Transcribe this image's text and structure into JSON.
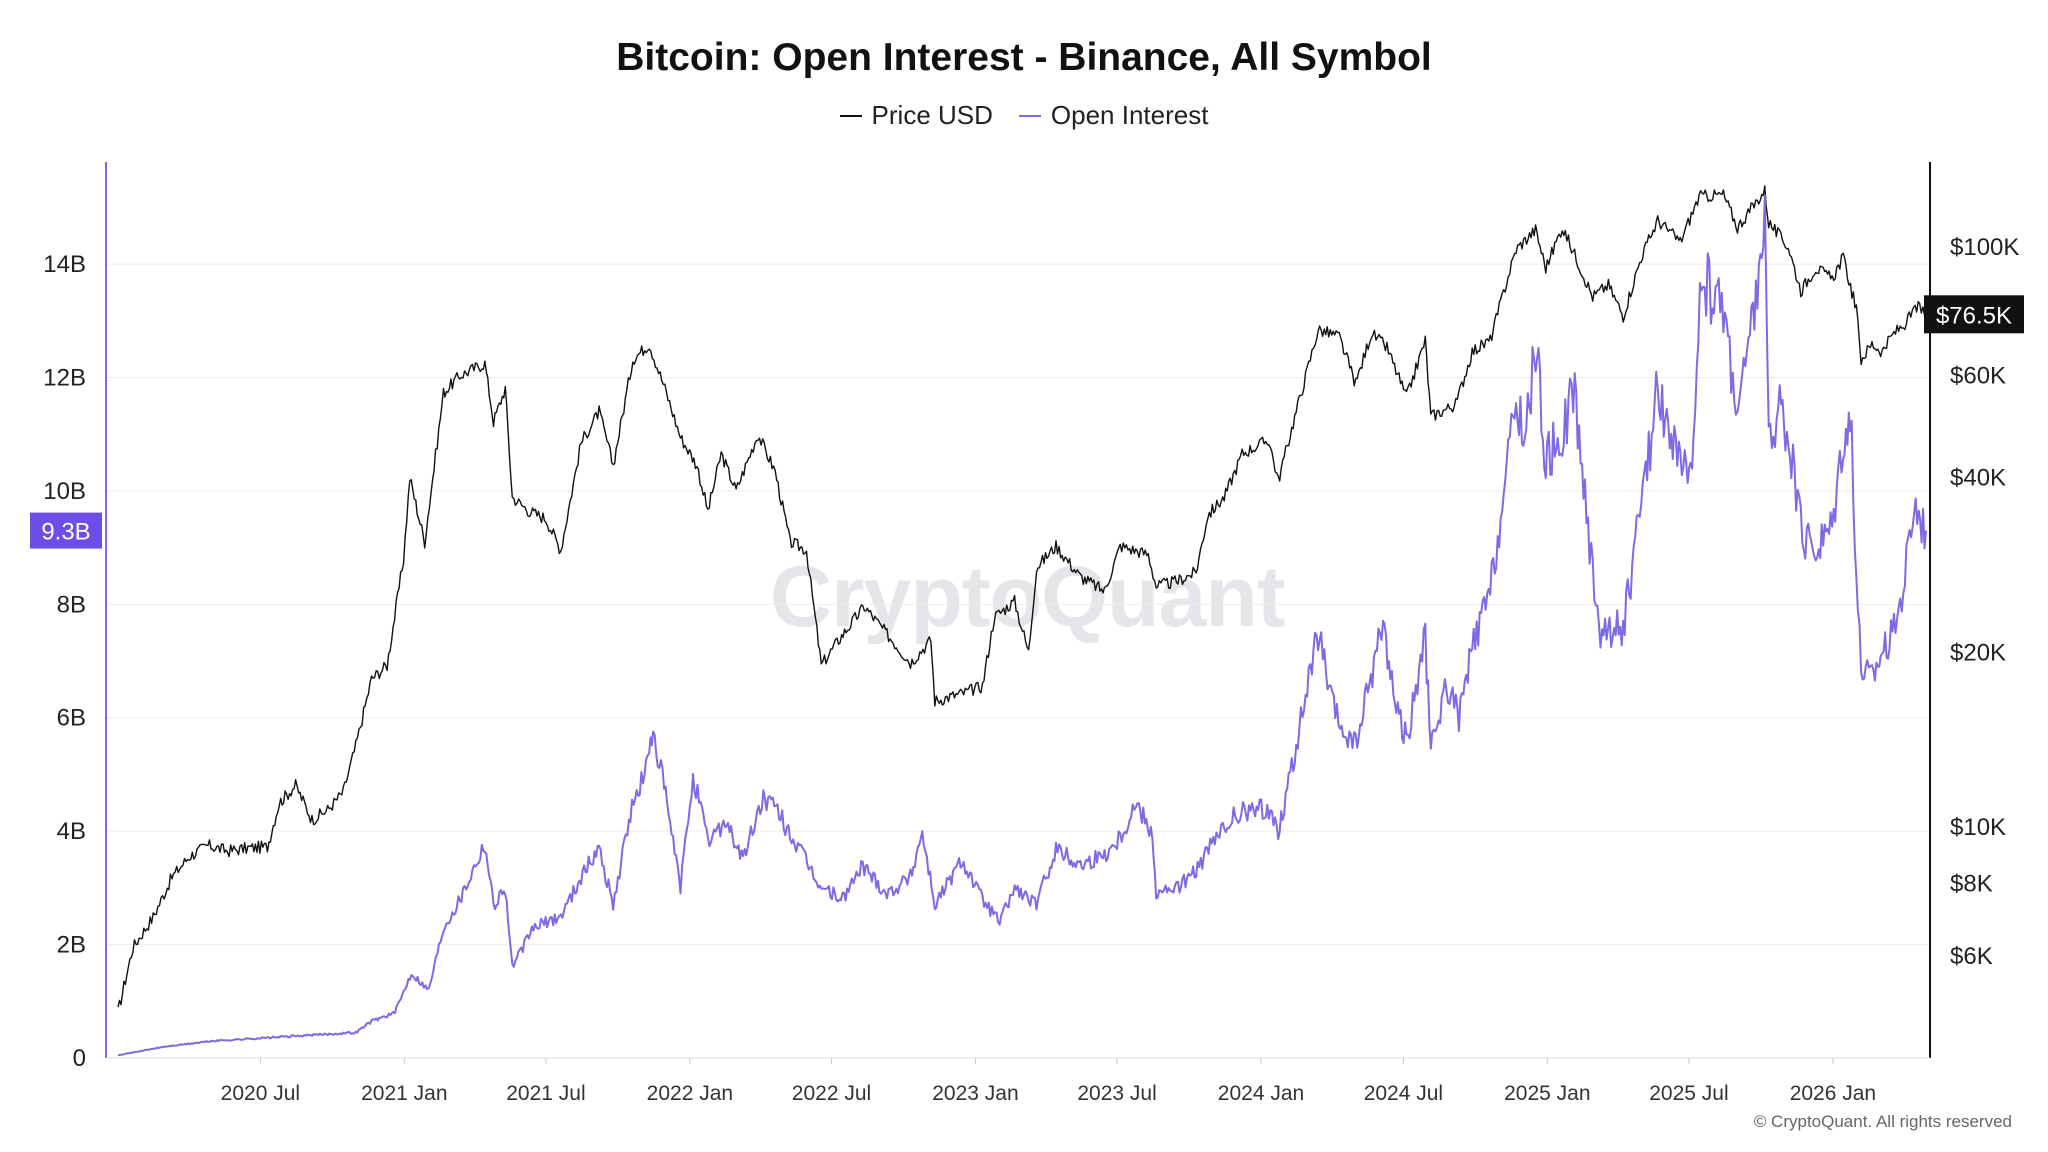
{
  "colors": {
    "price": "#111111",
    "open_interest": "#7b6be6",
    "oi_badge": "#6a4ee6",
    "price_badge": "#111111",
    "grid": "#eeeeee"
  },
  "chart_data": {
    "type": "line",
    "title": "Bitcoin: Open Interest - Binance, All Symbol",
    "legend": [
      "Price USD",
      "Open Interest"
    ],
    "legend_position": "top-center",
    "grid": true,
    "x_axis": {
      "type": "date",
      "range": [
        "2020-01-01",
        "2026-04-30"
      ],
      "tick_labels": [
        "2020 Jul",
        "2021 Jan",
        "2021 Jul",
        "2022 Jan",
        "2022 Jul",
        "2023 Jan",
        "2023 Jul",
        "2024 Jan",
        "2024 Jul",
        "2025 Jan",
        "2025 Jul",
        "2026 Jan"
      ]
    },
    "y_axis_left": {
      "label": "",
      "range": [
        0,
        15800000000
      ],
      "tick_labels": [
        "0",
        "2B",
        "4B",
        "6B",
        "8B",
        "10B",
        "12B",
        "14B"
      ],
      "tick_values": [
        0,
        2000000000,
        4000000000,
        6000000000,
        8000000000,
        10000000000,
        12000000000,
        14000000000
      ]
    },
    "y_axis_right": {
      "label": "",
      "scale": "log",
      "range": [
        4000,
        140000
      ],
      "tick_labels": [
        "$6K",
        "$8K",
        "$10K",
        "$20K",
        "$40K",
        "$60K",
        "$100K"
      ],
      "tick_values": [
        6000,
        8000,
        10000,
        20000,
        40000,
        60000,
        100000
      ]
    },
    "current_values": {
      "open_interest_label": "9.3B",
      "price_label": "$76.5K"
    },
    "series": [
      {
        "name": "Price USD",
        "axis": "right",
        "points": [
          [
            "2020-01-01",
            4800
          ],
          [
            "2020-01-20",
            6200
          ],
          [
            "2020-02-15",
            7000
          ],
          [
            "2020-03-10",
            8200
          ],
          [
            "2020-04-01",
            8900
          ],
          [
            "2020-04-25",
            9300
          ],
          [
            "2020-05-20",
            9100
          ],
          [
            "2020-06-15",
            9200
          ],
          [
            "2020-07-10",
            9250
          ],
          [
            "2020-07-25",
            11000
          ],
          [
            "2020-08-15",
            11800
          ],
          [
            "2020-09-05",
            10300
          ],
          [
            "2020-09-25",
            10700
          ],
          [
            "2020-10-15",
            11500
          ],
          [
            "2020-10-31",
            13800
          ],
          [
            "2020-11-20",
            18000
          ],
          [
            "2020-12-10",
            19000
          ],
          [
            "2020-12-31",
            29000
          ],
          [
            "2021-01-08",
            40000
          ],
          [
            "2021-01-27",
            31000
          ],
          [
            "2021-02-20",
            56000
          ],
          [
            "2021-03-13",
            60000
          ],
          [
            "2021-04-14",
            63000
          ],
          [
            "2021-04-25",
            50000
          ],
          [
            "2021-05-10",
            57000
          ],
          [
            "2021-05-19",
            37000
          ],
          [
            "2021-06-10",
            35000
          ],
          [
            "2021-07-01",
            34000
          ],
          [
            "2021-07-20",
            30000
          ],
          [
            "2021-08-15",
            46000
          ],
          [
            "2021-09-07",
            52000
          ],
          [
            "2021-09-25",
            42000
          ],
          [
            "2021-10-20",
            64000
          ],
          [
            "2021-11-10",
            68000
          ],
          [
            "2021-11-30",
            57000
          ],
          [
            "2021-12-20",
            47000
          ],
          [
            "2022-01-10",
            42000
          ],
          [
            "2022-01-24",
            35000
          ],
          [
            "2022-02-10",
            44000
          ],
          [
            "2022-03-01",
            38000
          ],
          [
            "2022-03-29",
            47500
          ],
          [
            "2022-04-20",
            41000
          ],
          [
            "2022-05-09",
            31000
          ],
          [
            "2022-05-30",
            30000
          ],
          [
            "2022-06-18",
            19000
          ],
          [
            "2022-07-10",
            21000
          ],
          [
            "2022-08-12",
            24000
          ],
          [
            "2022-09-10",
            21500
          ],
          [
            "2022-10-10",
            19200
          ],
          [
            "2022-11-05",
            21000
          ],
          [
            "2022-11-10",
            16500
          ],
          [
            "2022-12-15",
            17000
          ],
          [
            "2023-01-10",
            17500
          ],
          [
            "2023-01-25",
            23000
          ],
          [
            "2023-02-20",
            24500
          ],
          [
            "2023-03-10",
            20000
          ],
          [
            "2023-03-20",
            28000
          ],
          [
            "2023-04-14",
            30500
          ],
          [
            "2023-05-15",
            27000
          ],
          [
            "2023-06-15",
            25500
          ],
          [
            "2023-07-05",
            30500
          ],
          [
            "2023-08-10",
            29500
          ],
          [
            "2023-08-20",
            26000
          ],
          [
            "2023-09-15",
            26500
          ],
          [
            "2023-10-10",
            27500
          ],
          [
            "2023-10-25",
            34500
          ],
          [
            "2023-11-15",
            37000
          ],
          [
            "2023-12-08",
            44000
          ],
          [
            "2024-01-11",
            46500
          ],
          [
            "2024-01-23",
            39500
          ],
          [
            "2024-02-15",
            52000
          ],
          [
            "2024-03-14",
            72000
          ],
          [
            "2024-04-10",
            70000
          ],
          [
            "2024-05-01",
            58000
          ],
          [
            "2024-05-21",
            71000
          ],
          [
            "2024-06-10",
            67000
          ],
          [
            "2024-07-05",
            55000
          ],
          [
            "2024-07-29",
            69000
          ],
          [
            "2024-08-05",
            51000
          ],
          [
            "2024-09-06",
            53500
          ],
          [
            "2024-09-27",
            66000
          ],
          [
            "2024-10-20",
            69000
          ],
          [
            "2024-11-12",
            89000
          ],
          [
            "2024-11-22",
            99000
          ],
          [
            "2024-12-17",
            107000
          ],
          [
            "2024-12-30",
            92000
          ],
          [
            "2025-01-20",
            108000
          ],
          [
            "2025-02-05",
            97000
          ],
          [
            "2025-02-28",
            82000
          ],
          [
            "2025-03-20",
            86000
          ],
          [
            "2025-04-08",
            76000
          ],
          [
            "2025-05-01",
            96000
          ],
          [
            "2025-05-22",
            111000
          ],
          [
            "2025-06-20",
            102000
          ],
          [
            "2025-07-14",
            122000
          ],
          [
            "2025-08-14",
            123000
          ],
          [
            "2025-09-01",
            108000
          ],
          [
            "2025-10-06",
            125000
          ],
          [
            "2025-10-11",
            110000
          ],
          [
            "2025-11-05",
            100000
          ],
          [
            "2025-11-21",
            84000
          ],
          [
            "2025-12-10",
            92000
          ],
          [
            "2025-12-31",
            88000
          ],
          [
            "2026-01-14",
            96000
          ],
          [
            "2026-01-31",
            78000
          ],
          [
            "2026-02-06",
            64000
          ],
          [
            "2026-02-20",
            68000
          ],
          [
            "2026-03-05",
            66000
          ],
          [
            "2026-03-20",
            71000
          ],
          [
            "2026-04-05",
            74000
          ],
          [
            "2026-04-18",
            79000
          ],
          [
            "2026-04-30",
            76500
          ]
        ]
      },
      {
        "name": "Open Interest",
        "axis": "left",
        "points": [
          [
            "2020-01-01",
            50000000
          ],
          [
            "2020-03-01",
            200000000
          ],
          [
            "2020-05-01",
            300000000
          ],
          [
            "2020-07-01",
            350000000
          ],
          [
            "2020-09-01",
            400000000
          ],
          [
            "2020-10-31",
            450000000
          ],
          [
            "2020-11-20",
            650000000
          ],
          [
            "2020-12-20",
            800000000
          ],
          [
            "2021-01-10",
            1500000000
          ],
          [
            "2021-02-01",
            1200000000
          ],
          [
            "2021-02-20",
            2300000000
          ],
          [
            "2021-03-13",
            2800000000
          ],
          [
            "2021-04-14",
            3800000000
          ],
          [
            "2021-04-25",
            2700000000
          ],
          [
            "2021-05-10",
            3000000000
          ],
          [
            "2021-05-19",
            1600000000
          ],
          [
            "2021-06-15",
            2300000000
          ],
          [
            "2021-07-20",
            2500000000
          ],
          [
            "2021-08-15",
            3200000000
          ],
          [
            "2021-09-07",
            3700000000
          ],
          [
            "2021-09-25",
            2700000000
          ],
          [
            "2021-10-15",
            4200000000
          ],
          [
            "2021-11-10",
            5300000000
          ],
          [
            "2021-11-15",
            5800000000
          ],
          [
            "2021-12-01",
            4600000000
          ],
          [
            "2021-12-20",
            3000000000
          ],
          [
            "2022-01-05",
            5000000000
          ],
          [
            "2022-01-24",
            3800000000
          ],
          [
            "2022-02-15",
            4200000000
          ],
          [
            "2022-03-10",
            3500000000
          ],
          [
            "2022-04-05",
            4600000000
          ],
          [
            "2022-04-25",
            4300000000
          ],
          [
            "2022-05-15",
            3800000000
          ],
          [
            "2022-06-18",
            3000000000
          ],
          [
            "2022-07-15",
            2800000000
          ],
          [
            "2022-08-10",
            3400000000
          ],
          [
            "2022-09-10",
            2900000000
          ],
          [
            "2022-10-10",
            3200000000
          ],
          [
            "2022-10-25",
            4000000000
          ],
          [
            "2022-11-10",
            2700000000
          ],
          [
            "2022-12-15",
            3500000000
          ],
          [
            "2023-01-10",
            2800000000
          ],
          [
            "2023-02-01",
            2400000000
          ],
          [
            "2023-02-20",
            3000000000
          ],
          [
            "2023-03-20",
            2700000000
          ],
          [
            "2023-04-14",
            3700000000
          ],
          [
            "2023-05-15",
            3400000000
          ],
          [
            "2023-06-15",
            3600000000
          ],
          [
            "2023-07-05",
            3900000000
          ],
          [
            "2023-07-25",
            4500000000
          ],
          [
            "2023-08-15",
            4000000000
          ],
          [
            "2023-08-20",
            2900000000
          ],
          [
            "2023-09-15",
            3000000000
          ],
          [
            "2023-10-10",
            3300000000
          ],
          [
            "2023-11-01",
            3800000000
          ],
          [
            "2023-12-01",
            4300000000
          ],
          [
            "2024-01-11",
            4400000000
          ],
          [
            "2024-01-23",
            4000000000
          ],
          [
            "2024-02-15",
            5500000000
          ],
          [
            "2024-03-14",
            7500000000
          ],
          [
            "2024-04-01",
            6200000000
          ],
          [
            "2024-04-13",
            5800000000
          ],
          [
            "2024-05-01",
            5500000000
          ],
          [
            "2024-06-05",
            7700000000
          ],
          [
            "2024-06-20",
            6300000000
          ],
          [
            "2024-07-05",
            5600000000
          ],
          [
            "2024-07-29",
            7400000000
          ],
          [
            "2024-08-05",
            5400000000
          ],
          [
            "2024-08-25",
            6600000000
          ],
          [
            "2024-09-10",
            6000000000
          ],
          [
            "2024-09-27",
            7200000000
          ],
          [
            "2024-10-20",
            8200000000
          ],
          [
            "2024-11-12",
            10500000000
          ],
          [
            "2024-11-22",
            11500000000
          ],
          [
            "2024-12-05",
            11000000000
          ],
          [
            "2024-12-17",
            12600000000
          ],
          [
            "2024-12-30",
            10500000000
          ],
          [
            "2025-01-20",
            11000000000
          ],
          [
            "2025-02-05",
            11800000000
          ],
          [
            "2025-02-20",
            9500000000
          ],
          [
            "2025-03-10",
            7500000000
          ],
          [
            "2025-04-08",
            7600000000
          ],
          [
            "2025-05-01",
            9700000000
          ],
          [
            "2025-05-22",
            11800000000
          ],
          [
            "2025-06-20",
            10500000000
          ],
          [
            "2025-07-05",
            10000000000
          ],
          [
            "2025-07-15",
            13800000000
          ],
          [
            "2025-08-14",
            13200000000
          ],
          [
            "2025-09-01",
            11500000000
          ],
          [
            "2025-09-15",
            12400000000
          ],
          [
            "2025-10-06",
            14800000000
          ],
          [
            "2025-10-11",
            10700000000
          ],
          [
            "2025-10-25",
            11600000000
          ],
          [
            "2025-11-05",
            11000000000
          ],
          [
            "2025-11-21",
            9300000000
          ],
          [
            "2025-12-10",
            9000000000
          ],
          [
            "2025-12-31",
            9400000000
          ],
          [
            "2026-01-14",
            11000000000
          ],
          [
            "2026-01-25",
            11200000000
          ],
          [
            "2026-01-31",
            8500000000
          ],
          [
            "2026-02-06",
            6900000000
          ],
          [
            "2026-02-20",
            6700000000
          ],
          [
            "2026-03-05",
            7200000000
          ],
          [
            "2026-03-20",
            7500000000
          ],
          [
            "2026-04-01",
            8300000000
          ],
          [
            "2026-04-15",
            9800000000
          ],
          [
            "2026-04-30",
            9300000000
          ]
        ]
      }
    ]
  },
  "watermark_text": "CryptoQuant",
  "footer_text": "© CryptoQuant. All rights reserved"
}
